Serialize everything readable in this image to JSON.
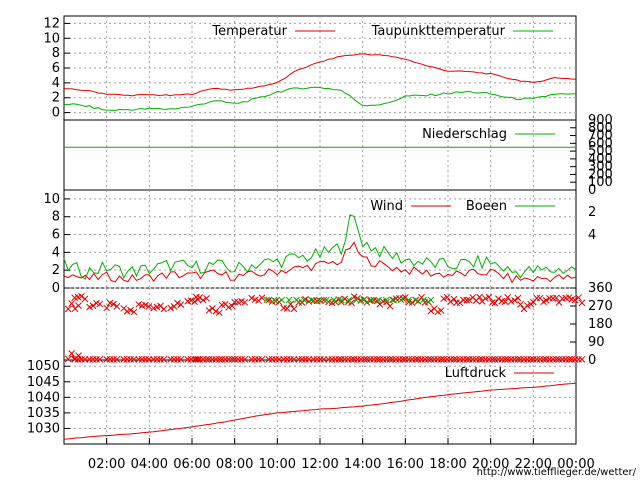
{
  "colors": {
    "red": "#e00000",
    "green": "#00b000",
    "grid": "#a0a0a0",
    "axis": "#000000",
    "background": "#ffffff"
  },
  "credit": "http://www.tiefflieger.de/wetter/",
  "x_axis": {
    "labels": [
      "02:00",
      "04:00",
      "06:00",
      "08:00",
      "10:00",
      "12:00",
      "14:00",
      "16:00",
      "18:00",
      "20:00",
      "22:00",
      "00:00"
    ],
    "range_hours": [
      0,
      24
    ]
  },
  "chart_data": [
    {
      "type": "line",
      "title": "",
      "ylim": [
        -1,
        13
      ],
      "yticks": [
        "0",
        "2",
        "4",
        "6",
        "8",
        "10",
        "12"
      ],
      "grid": true,
      "legend_position": "top-right",
      "x": [
        0,
        1,
        2,
        3,
        4,
        5,
        6,
        7,
        8,
        9,
        10,
        11,
        12,
        13,
        14,
        15,
        16,
        17,
        18,
        19,
        20,
        21,
        22,
        23,
        24
      ],
      "series": [
        {
          "name": "Temperatur",
          "color": "red",
          "values": [
            3.2,
            3.0,
            2.5,
            2.3,
            2.4,
            2.3,
            2.5,
            3.3,
            3.0,
            3.4,
            4.0,
            5.8,
            6.8,
            7.6,
            7.9,
            7.7,
            7.2,
            6.3,
            5.6,
            5.5,
            5.2,
            4.5,
            4.0,
            4.7,
            4.5
          ]
        },
        {
          "name": "Taupunkttemperatur",
          "color": "green",
          "values": [
            1.2,
            0.9,
            0.3,
            0.4,
            0.5,
            0.5,
            0.8,
            1.6,
            1.2,
            1.8,
            2.8,
            3.3,
            3.4,
            3.0,
            1.0,
            1.1,
            2.2,
            2.3,
            2.6,
            2.8,
            2.5,
            1.9,
            1.8,
            2.5,
            2.4
          ]
        }
      ]
    },
    {
      "type": "line",
      "title": "",
      "ylim": [
        0,
        900
      ],
      "yticks_right": [
        "0",
        "100",
        "200",
        "300",
        "400",
        "500",
        "600",
        "700",
        "800",
        "900"
      ],
      "grid": false,
      "legend_position": "top-right",
      "x": [
        0,
        24
      ],
      "series": [
        {
          "name": "Niederschlag",
          "color": "green",
          "values": [
            0,
            0
          ]
        }
      ]
    },
    {
      "type": "line",
      "title": "",
      "ylim": [
        0,
        11
      ],
      "yticks": [
        "0",
        "2",
        "4",
        "6",
        "8",
        "10"
      ],
      "yticks_right": [
        "2",
        "4"
      ],
      "grid": true,
      "legend_position": "top-right",
      "x": [
        0,
        1,
        2,
        3,
        4,
        5,
        6,
        7,
        8,
        9,
        10,
        11,
        12,
        13,
        13.5,
        14,
        15,
        16,
        17,
        18,
        19,
        20,
        21,
        22,
        23,
        24
      ],
      "series": [
        {
          "name": "Wind",
          "color": "red",
          "values": [
            1.8,
            1.0,
            1.3,
            1.0,
            1.2,
            1.5,
            1.4,
            1.6,
            1.3,
            1.5,
            1.9,
            2.2,
            2.6,
            3.0,
            5.0,
            3.3,
            2.5,
            2.0,
            1.7,
            1.5,
            1.6,
            1.8,
            1.0,
            1.0,
            1.2,
            1.0
          ]
        },
        {
          "name": "Boeen",
          "color": "green",
          "values": [
            2.5,
            1.8,
            2.3,
            1.8,
            2.1,
            2.6,
            2.3,
            2.6,
            2.1,
            2.7,
            3.0,
            3.4,
            3.7,
            4.6,
            8.3,
            5.2,
            3.9,
            3.2,
            2.8,
            2.5,
            2.8,
            2.9,
            1.8,
            1.9,
            2.0,
            2.2
          ]
        }
      ]
    },
    {
      "type": "scatter",
      "title": "",
      "ylim": [
        0,
        360
      ],
      "yticks_right": [
        "0",
        "90",
        "180",
        "270",
        "360"
      ],
      "grid": false,
      "marker": "x",
      "x": [
        0.2,
        0.5,
        1.2,
        2.0,
        2.8,
        3.5,
        4.2,
        5.0,
        5.8,
        6.2,
        6.8,
        7.4,
        8.0,
        8.8,
        9.6,
        10.3,
        11.0,
        11.7,
        12.4,
        13.0,
        13.6,
        14.2,
        14.8,
        15.4,
        16.0,
        16.6,
        17.2,
        17.8,
        18.4,
        19.0,
        19.6,
        20.2,
        20.8,
        21.4,
        22.0,
        22.6,
        23.2,
        23.8
      ],
      "series": [
        {
          "name": "",
          "color": "red",
          "values": [
            270,
            315,
            270,
            270,
            245,
            270,
            270,
            270,
            300,
            300,
            245,
            270,
            300,
            300,
            300,
            270,
            300,
            300,
            300,
            300,
            310,
            300,
            280,
            300,
            300,
            300,
            245,
            300,
            300,
            300,
            300,
            300,
            300,
            270,
            300,
            300,
            300,
            300
          ]
        },
        {
          "name": "",
          "color": "red",
          "values": [
            20,
            0,
            0,
            0,
            0,
            0,
            0,
            0,
            0,
            0,
            0,
            0,
            0,
            0,
            0,
            0,
            0,
            0,
            0,
            0,
            0,
            0,
            0,
            0,
            0,
            0,
            0,
            0,
            0,
            0,
            0,
            0,
            0,
            0,
            0,
            0,
            0,
            0
          ]
        }
      ]
    },
    {
      "type": "line",
      "title": "",
      "ylim": [
        1025,
        1052
      ],
      "yticks": [
        "1030",
        "1035",
        "1040",
        "1045",
        "1050"
      ],
      "grid": true,
      "legend_position": "top-right",
      "x": [
        0,
        1,
        2,
        3,
        4,
        5,
        6,
        7,
        8,
        9,
        10,
        11,
        12,
        13,
        14,
        15,
        16,
        17,
        18,
        19,
        20,
        21,
        22,
        23,
        24
      ],
      "series": [
        {
          "name": "Luftdruck",
          "color": "red",
          "values": [
            1026.5,
            1027.2,
            1027.7,
            1028.2,
            1028.8,
            1029.6,
            1030.5,
            1031.5,
            1032.7,
            1034.0,
            1035.0,
            1035.6,
            1036.2,
            1036.6,
            1037.2,
            1038.0,
            1039.0,
            1040.0,
            1040.9,
            1041.6,
            1042.3,
            1042.8,
            1043.2,
            1043.9,
            1044.6
          ]
        }
      ]
    }
  ]
}
